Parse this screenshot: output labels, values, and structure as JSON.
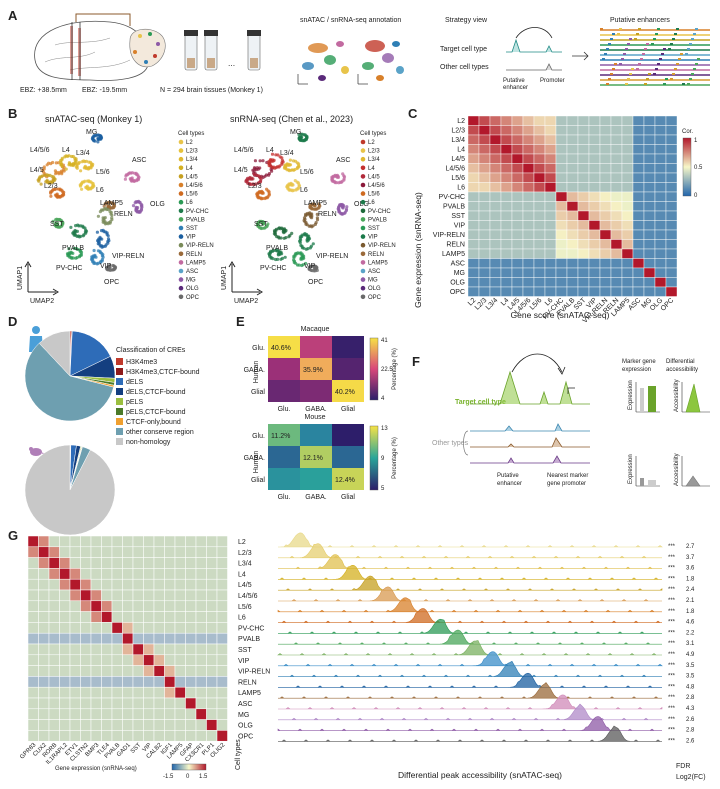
{
  "colors": {
    "celltypes": [
      "#e8c44a",
      "#e6c23a",
      "#e0b830",
      "#d4b020",
      "#c6a020",
      "#d79a30",
      "#d8802a",
      "#cf6a20",
      "#1d7a4a",
      "#2b9a55",
      "#4aa65a",
      "#5aa3c8",
      "#2f7fb5",
      "#1b5fa0",
      "#7a8b5a",
      "#9a6a3a",
      "#c26aa0",
      "#8e5aa6",
      "#5a2a7a",
      "#6a6a6a"
    ],
    "heat_hi": "#b2182b",
    "heat_mid": "#f7f7c8",
    "heat_lo": "#2166ac",
    "grey_cell": "#a8bccc"
  },
  "panelA": {
    "letter": "A",
    "ebz1": "EBZ: +38.5mm",
    "ebz2": "EBZ: -19.5mm",
    "ntissues": "N = 294 brain tissues (Monkey 1)",
    "dots": "...",
    "annot_title": "snATAC / snRNA-seq annotation",
    "strategy_title": "Strategy view",
    "target": "Target cell type",
    "other": "Other cell types",
    "putative": "Putative",
    "enhancer": "enhancer",
    "promoter": "Promoter",
    "enh_title": "Putative enhancers"
  },
  "panelB": {
    "letter": "B",
    "title_left": "snATAC-seq (Monkey 1)",
    "title_right": "snRNA-seq (Chen et al., 2023)",
    "umap1": "UMAP1",
    "umap2": "UMAP2",
    "legend_title": "Cell types",
    "celltypes": [
      "L2",
      "L2/3",
      "L3/4",
      "L4",
      "L4/5",
      "L4/5/6",
      "L5/6",
      "L6",
      "PV-CHC",
      "PVALB",
      "SST",
      "VIP",
      "VIP-RELN",
      "RELN",
      "LAMP5",
      "ASC",
      "MG",
      "OLG",
      "OPC"
    ],
    "cluster_labels": [
      "MG",
      "L4/5/6",
      "L4",
      "L3/4",
      "L4/5",
      "L5/6",
      "L2/3",
      "L6",
      "ASC",
      "LAMP5",
      "RELN",
      "OLG",
      "SST",
      "PVALB",
      "VIP-RELN",
      "PV-CHC",
      "VIP",
      "OPC"
    ]
  },
  "panelC": {
    "letter": "C",
    "rows": [
      "L2",
      "L2/3",
      "L3/4",
      "L4",
      "L4/5",
      "L4/5/6",
      "L5/6",
      "L6",
      "PV-CHC",
      "PVALB",
      "SST",
      "VIP",
      "VIP-RELN",
      "RELN",
      "LAMP5",
      "ASC",
      "MG",
      "OLG",
      "OPC"
    ],
    "cols": [
      "L2",
      "L2/3",
      "L3/4",
      "L4",
      "L4/5",
      "L4/5/6",
      "L5/6",
      "L6",
      "PV-CHC",
      "PVALB",
      "SST",
      "VIP",
      "VIP-RELN",
      "RELN",
      "LAMP5",
      "ASC",
      "MG",
      "OLG",
      "OPC"
    ],
    "ylabel": "Gene expression (snRNA-seq)",
    "xlabel": "Gene score (snATAC-seq)",
    "cbar_title": "Cor.",
    "cbar_ticks": [
      "1",
      "0.5",
      "0"
    ]
  },
  "panelD": {
    "letter": "D",
    "legend_title": "Classification of CREs",
    "categories": [
      "H3K4me3",
      "H3K4me3,CTCF-bound",
      "dELS",
      "dELS,CTCF-bound",
      "pELS",
      "pELS,CTCF-bound",
      "CTCF-only,bound",
      "other conserve region",
      "non-homology"
    ],
    "colors": [
      "#c0392b",
      "#8e1b1b",
      "#2e6cb8",
      "#143f80",
      "#9bbf3f",
      "#4b7a2a",
      "#f0a030",
      "#6e9fb0",
      "#c8c8c8"
    ],
    "human_values": [
      0.5,
      0.3,
      17,
      8,
      1.5,
      1,
      0.7,
      59,
      12
    ],
    "mouse_values": [
      0.2,
      0.1,
      2,
      1.5,
      0.3,
      0.2,
      0.2,
      3,
      92.5
    ]
  },
  "panelE": {
    "letter": "E",
    "macaque_title": "Macaque",
    "mouse_title": "Mouse",
    "ylabel": "Human",
    "xcats": [
      "Glu.",
      "GABA.",
      "Glial"
    ],
    "ycats": [
      "Glu.",
      "GABA.",
      "Glial"
    ],
    "macaque_values": [
      [
        40.6,
        20,
        5
      ],
      [
        15,
        35.9,
        8
      ],
      [
        10,
        12,
        40.2
      ]
    ],
    "macaque_labels": [
      "40.6%",
      "35.9%",
      "40.2%"
    ],
    "macaque_cbar": [
      "41",
      "22.5",
      "4"
    ],
    "mouse_values": [
      [
        11.2,
        8,
        5
      ],
      [
        7,
        12.1,
        7
      ],
      [
        9,
        10,
        12.4
      ]
    ],
    "mouse_labels": [
      "11.2%",
      "12.1%",
      "12.4%"
    ],
    "mouse_cbar": [
      "13",
      "9",
      "5"
    ],
    "cbar_title": "Percentage (%)"
  },
  "panelF": {
    "letter": "F",
    "target": "Target cell type",
    "other": "Other types",
    "putative": "Putative",
    "enhancer": "enhancer",
    "nearest1": "Nearest marker",
    "nearest2": "gene promoter",
    "marker_title1": "Marker gene",
    "marker_title2": "expression",
    "diff_title1": "Differential",
    "diff_title2": "accessibility",
    "expression": "Expression",
    "accessibility": "Accessibility"
  },
  "panelG": {
    "letter": "G",
    "genes": [
      "GPR83",
      "CUX2",
      "RORB",
      "IL1RAPL2",
      "ETV1",
      "CLSTN2",
      "BMP3",
      "TLE4",
      "PVALB",
      "GAD1",
      "SST",
      "VIP",
      "CALB2",
      "IGF1",
      "LAMP5",
      "GFAP",
      "CX3CR1",
      "PLP1",
      "OLIG2"
    ],
    "celltypes": [
      "L2",
      "L2/3",
      "L3/4",
      "L4",
      "L4/5",
      "L4/5/6",
      "L5/6",
      "L6",
      "PV-CHC",
      "PVALB",
      "SST",
      "VIP",
      "VIP-RELN",
      "RELN",
      "LAMP5",
      "ASC",
      "MG",
      "OLG",
      "OPC"
    ],
    "celltypes_label": "Cell types",
    "cbar_title": "Gene expression (snRNA-seq)",
    "cbar_ticks": [
      "-1.5",
      "0",
      "1.5"
    ],
    "xlabel": "Differential peak accessibility (snATAC-seq)",
    "fdr_label": "FDR",
    "fc_label": "Log2(FC)",
    "stars": "***",
    "fc_values": [
      "2.7",
      "3.7",
      "3.6",
      "1.8",
      "2.4",
      "2.1",
      "1.8",
      "4.6",
      "2.2",
      "3.1",
      "4.9",
      "3.5",
      "3.5",
      "4.8",
      "2.8",
      "4.3",
      "2.6",
      "2.8",
      "2.6"
    ]
  }
}
